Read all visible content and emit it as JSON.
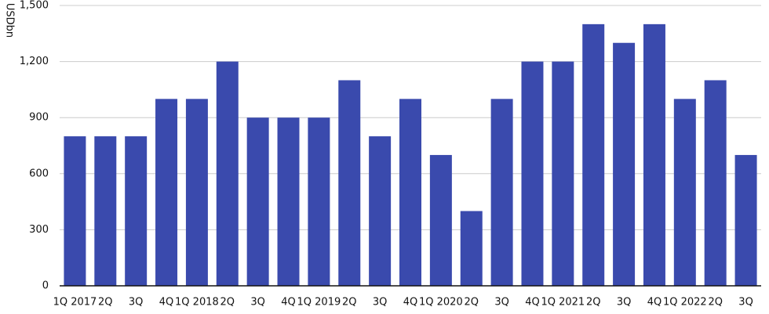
{
  "chart_data": {
    "type": "bar",
    "y_label": "USDbn",
    "categories": [
      "1Q 2017",
      "2Q",
      "3Q",
      "4Q",
      "1Q 2018",
      "2Q",
      "3Q",
      "4Q",
      "1Q 2019",
      "2Q",
      "3Q",
      "4Q",
      "1Q 2020",
      "2Q",
      "3Q",
      "4Q",
      "1Q 2021",
      "2Q",
      "3Q",
      "4Q",
      "1Q 2022",
      "2Q",
      "3Q"
    ],
    "values": [
      800,
      800,
      800,
      1000,
      1000,
      1200,
      900,
      900,
      900,
      1100,
      800,
      1000,
      700,
      400,
      1000,
      1200,
      1200,
      1400,
      1300,
      1400,
      1000,
      1100,
      700
    ],
    "color": "#3a4aad",
    "ylim": [
      0,
      1500
    ],
    "yticks": [
      0,
      300,
      600,
      900,
      {
        "value": 1200,
        "label": "1,200"
      },
      {
        "value": 1500,
        "label": "1,500"
      }
    ],
    "grid": true
  }
}
